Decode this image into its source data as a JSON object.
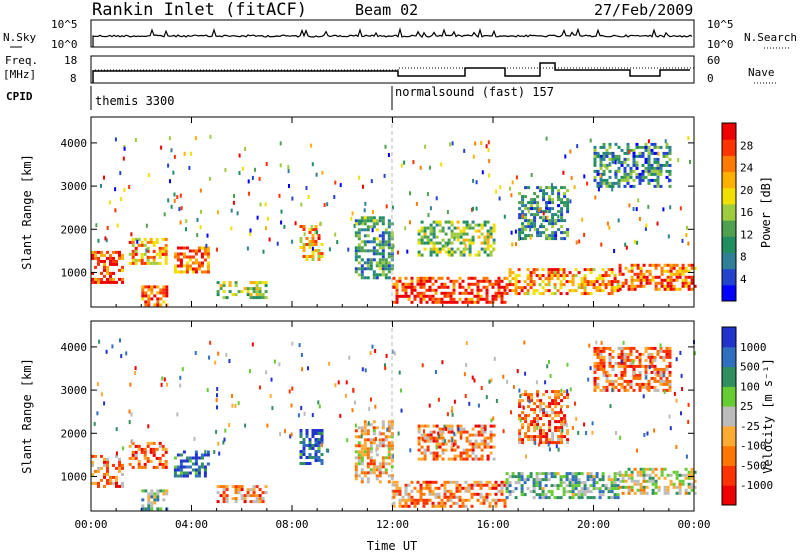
{
  "header": {
    "station": "Rankin Inlet (fitACF)",
    "beam": "Beam 02",
    "date": "27/Feb/2009"
  },
  "top_panels": {
    "nsky_label": "N.Sky",
    "nsky_ticks": [
      "10^5",
      "10^0"
    ],
    "nsearch_label": "N.Search",
    "nsearch_ticks": [
      "10^5",
      "10^0"
    ],
    "freq_label": "Freq.",
    "freq_unit": "[MHz]",
    "freq_ticks": [
      "18",
      "8"
    ],
    "nave_label": "Nave",
    "nave_ticks": [
      "60",
      "0"
    ],
    "cpid_label": "CPID",
    "cpid_segments": [
      {
        "name": "themis 3300",
        "start_hour": 0
      },
      {
        "name": "normalsound (fast) 157",
        "start_hour": 12
      }
    ]
  },
  "chart_data": [
    {
      "type": "heatmap",
      "title": "Power",
      "xlabel": "",
      "ylabel": "Slant Range [km]",
      "xlim": [
        0,
        24
      ],
      "ylim": [
        200,
        4600
      ],
      "xticks": [
        "00:00",
        "04:00",
        "08:00",
        "12:00",
        "16:00",
        "20:00",
        "00:00"
      ],
      "yticks": [
        1000,
        2000,
        3000,
        4000
      ],
      "colorbar": {
        "label": "Power [dB]",
        "ticks": [
          "28",
          "24",
          "20",
          "16",
          "12",
          "8",
          "4"
        ],
        "colors": [
          "#0000ff",
          "#2244cc",
          "#2f7f99",
          "#1f8f5f",
          "#4fa04f",
          "#9fcc3f",
          "#f0e000",
          "#ffb000",
          "#ff7a00",
          "#ff3300",
          "#ee0000"
        ]
      },
      "regions": [
        {
          "t": [
            0.0,
            1.2
          ],
          "r": [
            800,
            1500
          ],
          "level": 0.85
        },
        {
          "t": [
            1.5,
            3.0
          ],
          "r": [
            1200,
            1800
          ],
          "level": 0.7
        },
        {
          "t": [
            2.0,
            3.0
          ],
          "r": [
            250,
            700
          ],
          "level": 0.8
        },
        {
          "t": [
            3.3,
            4.7
          ],
          "r": [
            1000,
            1600
          ],
          "level": 0.8
        },
        {
          "t": [
            5.0,
            7.0
          ],
          "r": [
            400,
            800
          ],
          "level": 0.5
        },
        {
          "t": [
            8.3,
            9.2
          ],
          "r": [
            1300,
            2100
          ],
          "level": 0.7
        },
        {
          "t": [
            10.5,
            12.0
          ],
          "r": [
            900,
            2300
          ],
          "level": 0.35
        },
        {
          "t": [
            12.0,
            16.5
          ],
          "r": [
            300,
            900
          ],
          "level": 0.9
        },
        {
          "t": [
            13.0,
            16.0
          ],
          "r": [
            1400,
            2200
          ],
          "level": 0.45
        },
        {
          "t": [
            16.5,
            21.0
          ],
          "r": [
            500,
            1100
          ],
          "level": 0.75
        },
        {
          "t": [
            17.0,
            19.0
          ],
          "r": [
            1800,
            3000
          ],
          "level": 0.3
        },
        {
          "t": [
            21.0,
            24.0
          ],
          "r": [
            600,
            1200
          ],
          "level": 0.8
        },
        {
          "t": [
            20.0,
            23.0
          ],
          "r": [
            3000,
            4000
          ],
          "level": 0.3
        }
      ]
    },
    {
      "type": "heatmap",
      "title": "Velocity",
      "xlabel": "Time UT",
      "ylabel": "Slant Range [km]",
      "xlim": [
        0,
        24
      ],
      "ylim": [
        200,
        4600
      ],
      "xticks": [
        "00:00",
        "04:00",
        "08:00",
        "12:00",
        "16:00",
        "20:00",
        "00:00"
      ],
      "yticks": [
        1000,
        2000,
        3000,
        4000
      ],
      "colorbar": {
        "label": "Velocity [m s⁻¹]",
        "ticks": [
          "1000",
          "500",
          "100",
          "25",
          "-25",
          "-100",
          "-500",
          "-1000"
        ],
        "colors": [
          "#ee0000",
          "#ff3300",
          "#ff7700",
          "#ffaa33",
          "#bbbbbb",
          "#66cc33",
          "#2f8f5f",
          "#2f6fbf",
          "#2233cc"
        ]
      },
      "regions": [
        {
          "t": [
            0.0,
            1.2
          ],
          "r": [
            800,
            1500
          ],
          "level": 0.3
        },
        {
          "t": [
            1.5,
            3.0
          ],
          "r": [
            1200,
            1800
          ],
          "level": 0.25
        },
        {
          "t": [
            2.0,
            3.0
          ],
          "r": [
            250,
            700
          ],
          "level": 0.6
        },
        {
          "t": [
            3.3,
            4.7
          ],
          "r": [
            1000,
            1600
          ],
          "level": 0.85
        },
        {
          "t": [
            5.0,
            7.0
          ],
          "r": [
            400,
            800
          ],
          "level": 0.3
        },
        {
          "t": [
            8.3,
            9.2
          ],
          "r": [
            1300,
            2100
          ],
          "level": 0.85
        },
        {
          "t": [
            10.5,
            12.0
          ],
          "r": [
            900,
            2300
          ],
          "level": 0.4
        },
        {
          "t": [
            12.0,
            16.5
          ],
          "r": [
            300,
            900
          ],
          "level": 0.3
        },
        {
          "t": [
            13.0,
            16.0
          ],
          "r": [
            1400,
            2200
          ],
          "level": 0.3
        },
        {
          "t": [
            16.5,
            21.0
          ],
          "r": [
            500,
            1100
          ],
          "level": 0.65
        },
        {
          "t": [
            17.0,
            19.0
          ],
          "r": [
            1800,
            3000
          ],
          "level": 0.25
        },
        {
          "t": [
            21.0,
            24.0
          ],
          "r": [
            600,
            1200
          ],
          "level": 0.5
        },
        {
          "t": [
            20.0,
            23.0
          ],
          "r": [
            3000,
            4000
          ],
          "level": 0.3
        }
      ]
    }
  ]
}
